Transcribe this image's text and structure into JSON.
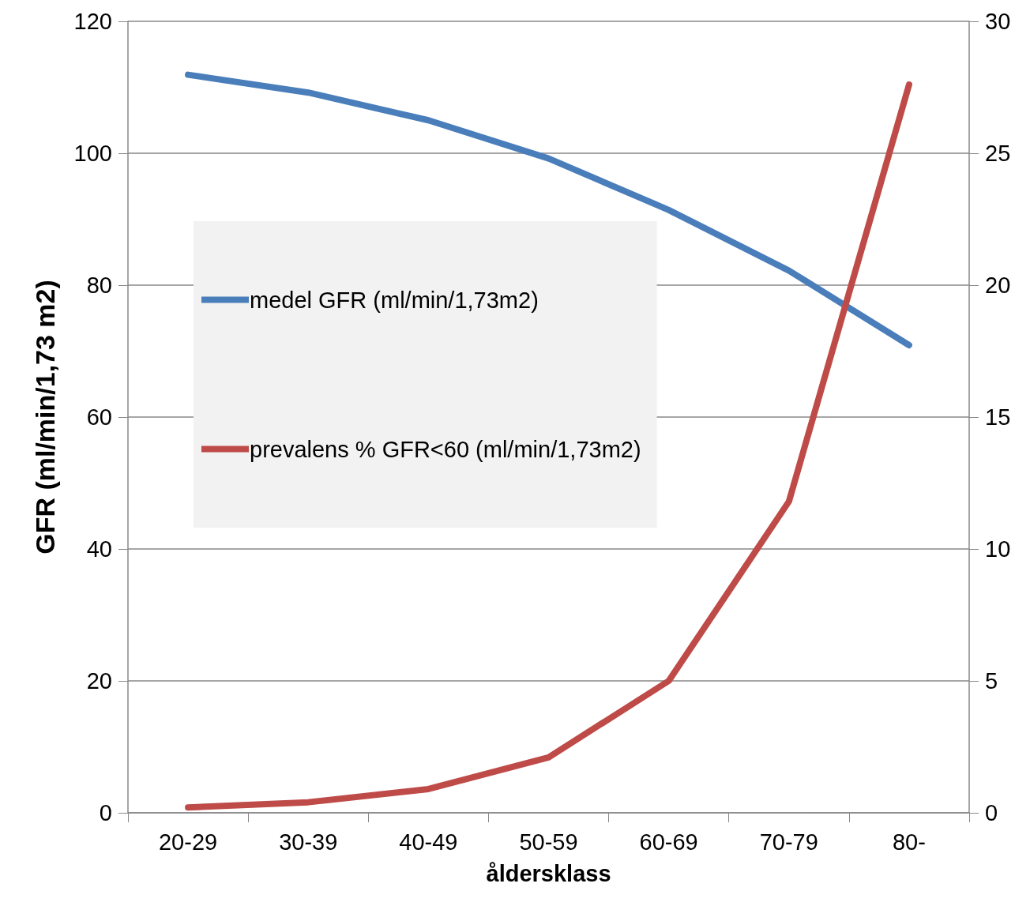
{
  "chart_data": {
    "type": "line",
    "xlabel": "åldersklass",
    "ylabel": "GFR (ml/min/1,73 m2)",
    "categories": [
      "20-29",
      "30-39",
      "40-49",
      "50-59",
      "60-69",
      "70-79",
      "80-"
    ],
    "series": [
      {
        "name": "medel GFR (ml/min/1,73m2)",
        "color": "#4a7ebb",
        "values": [
          111.9,
          109.2,
          105.0,
          99.2,
          91.4,
          82.2,
          70.9
        ]
      },
      {
        "name": "prevalens % GFR<60 (ml/min/1,73m2)",
        "color": "#be4b48",
        "axis": "y2",
        "values": [
          0.2,
          0.4,
          0.9,
          2.1,
          5.0,
          11.8,
          27.6
        ]
      }
    ],
    "ylim": [
      0,
      120
    ],
    "yticks": [
      0,
      20,
      40,
      60,
      80,
      100,
      120
    ],
    "y2lim": [
      0,
      30
    ],
    "y2ticks": [
      0,
      5,
      10,
      15,
      20,
      25,
      30
    ],
    "grid": "y",
    "legend": "left",
    "line_style": "solid"
  }
}
